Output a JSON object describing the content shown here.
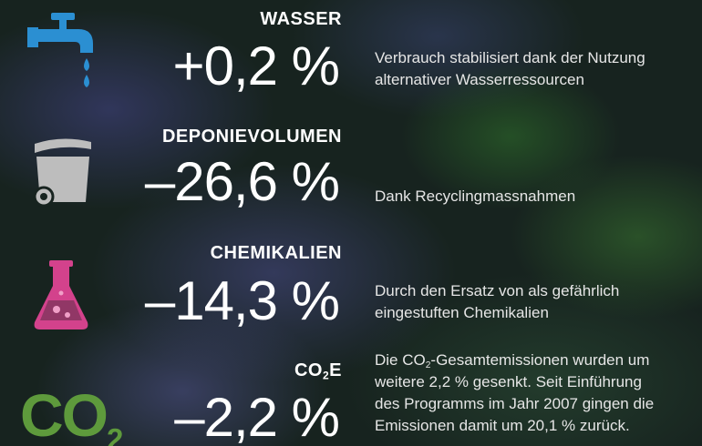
{
  "items": [
    {
      "label": "WASSER",
      "value": "+0,2 %",
      "description": [
        "Verbrauch stabilisiert dank der Nutzung",
        "alternativer Wasserressourcen"
      ]
    },
    {
      "label": "DEPONIEVOLUMEN",
      "value": "–26,6 %",
      "description": [
        "Dank Recyclingmassnahmen"
      ]
    },
    {
      "label": "CHEMIKALIEN",
      "value": "–14,3 %",
      "description": [
        "Durch den Ersatz von als gefährlich",
        "eingestuften Chemikalien"
      ]
    },
    {
      "icon": {
        "main": "CO",
        "sub": "2"
      },
      "label": {
        "main": "CO",
        "sub": "2",
        "end": "E"
      },
      "value": "–2,2 %",
      "description": [
        {
          "main": "Die CO",
          "sub": "2",
          "end": "-Gesamtemissionen wurden um"
        },
        "weitere 2,2 % gesenkt. Seit Einführung",
        "des Programms im Jahr 2007 gingen die",
        "Emissionen damit um 20,1 % zurück."
      ]
    }
  ]
}
